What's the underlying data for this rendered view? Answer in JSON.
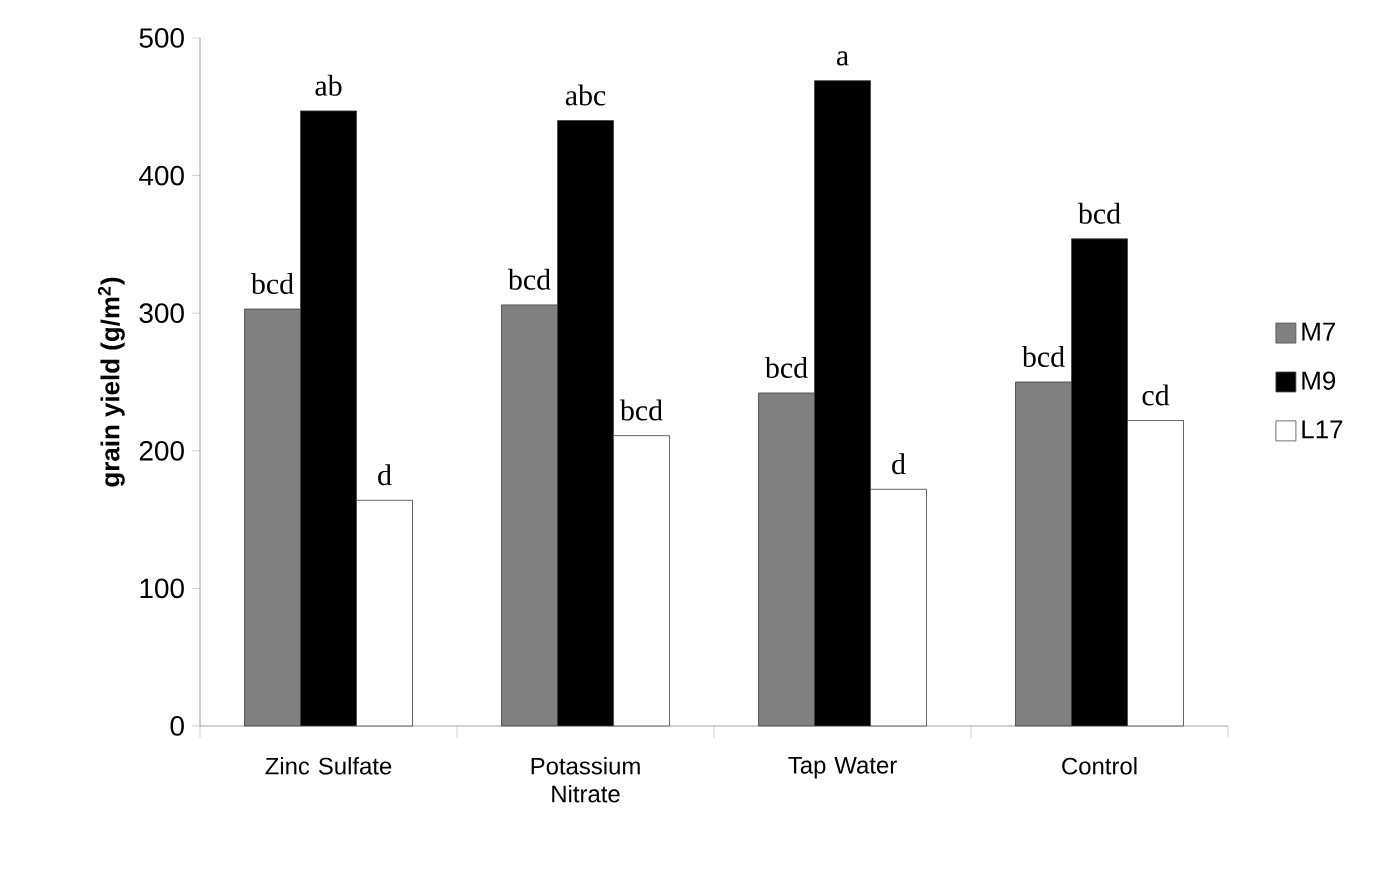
{
  "chart_data": {
    "type": "bar",
    "ylabel": "grain yield (g/m$^{2}$)",
    "categories": [
      "Zinc  Sulfate",
      "Potassium Nitrate",
      "Tap Water",
      "Control"
    ],
    "ylim": [
      0,
      500
    ],
    "yticks": [
      0,
      100,
      200,
      300,
      400,
      500
    ],
    "grid": false,
    "legend": "right",
    "series": [
      {
        "name": "M7",
        "color": "#808080",
        "values": [
          303,
          306,
          242,
          250
        ],
        "value_labels": [
          "bcd",
          "bcd",
          "bcd",
          "bcd"
        ]
      },
      {
        "name": "M9",
        "color": "#000000",
        "values": [
          447,
          440,
          469,
          354
        ],
        "value_labels": [
          "ab",
          "abc",
          "a",
          "bcd"
        ]
      },
      {
        "name": "L17",
        "color": "#ffffff",
        "values": [
          164,
          211,
          172,
          222
        ],
        "value_labels": [
          "d",
          "bcd",
          "d",
          "cd"
        ]
      }
    ]
  }
}
